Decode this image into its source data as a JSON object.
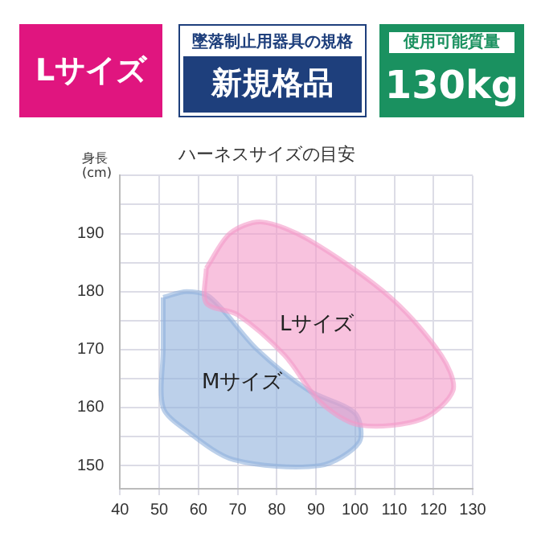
{
  "chart_data": {
    "type": "area",
    "title": "ハーネスサイズの目安",
    "ylabel": "身長\n(cm)",
    "annotations": [
      "Lサイズ",
      "墜落制止用器具の規格",
      "新規格品",
      "使用可能質量",
      "130kg"
    ],
    "xlim": [
      40,
      130
    ],
    "xticks": [
      40,
      50,
      60,
      70,
      80,
      90,
      100,
      110,
      120,
      130
    ],
    "ylim": [
      146,
      200
    ],
    "yticks": [
      150,
      {
        "value": 155,
        "label": null
      },
      160,
      {
        "value": 165,
        "label": null
      },
      170,
      {
        "value": 175,
        "label": null
      },
      180,
      {
        "value": 185,
        "label": null
      },
      190,
      {
        "value": 195,
        "label": null
      },
      {
        "value": 200,
        "label": null
      }
    ],
    "grid": true,
    "series": [
      {
        "name": "Lサイズ",
        "color": "#f49ac8",
        "x": [
          62,
          68,
          76,
          88,
          109,
          122,
          125,
          117,
          101,
          91,
          82,
          70,
          62
        ],
        "values": [
          184,
          190,
          192,
          189,
          179,
          169,
          163,
          158,
          157,
          161,
          169,
          176,
          178
        ]
      },
      {
        "name": "Mサイズ",
        "color": "#8fb1dc",
        "x": [
          51,
          57,
          63,
          75,
          88,
          100,
          101,
          91,
          69,
          57,
          51,
          51
        ],
        "values": [
          179,
          180,
          179,
          170,
          163,
          159,
          154,
          150,
          151,
          156,
          160,
          170
        ]
      }
    ]
  }
}
